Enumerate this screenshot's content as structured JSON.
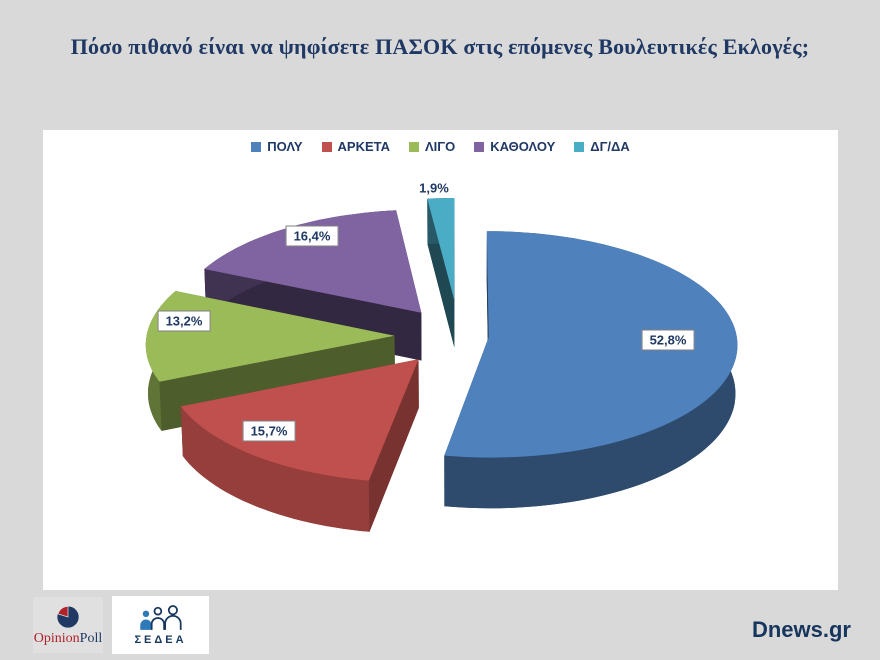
{
  "title": "Πόσο πιθανό είναι να  ψηφίσετε ΠΑΣΟΚ στις επόμενες Βουλευτικές Εκλογές;",
  "chart_data": {
    "type": "pie",
    "style": "3d exploded pie",
    "title": "Πόσο πιθανό είναι να ψηφίσετε ΠΑΣΟΚ στις επόμενες Βουλευτικές Εκλογές;",
    "unit": "%",
    "start_angle_deg": 0,
    "direction": "clockwise",
    "legend_position": "top",
    "slices": [
      {
        "label": "ΠΟΛΥ",
        "value": 52.8,
        "display": "52,8%",
        "color": "#4F81BD"
      },
      {
        "label": "ΑΡΚΕΤΑ",
        "value": 15.7,
        "display": "15,7%",
        "color": "#C0504D"
      },
      {
        "label": "ΛΙΓΟ",
        "value": 13.2,
        "display": "13,2%",
        "color": "#9BBB59"
      },
      {
        "label": "ΚΑΘΟΛΟΥ",
        "value": 16.4,
        "display": "16,4%",
        "color": "#8064A2"
      },
      {
        "label": "ΔΓ/ΔΑ",
        "value": 1.9,
        "display": "1,9%",
        "color": "#4BACC6"
      }
    ]
  },
  "footer": {
    "opinionpoll": {
      "part1": "Opinion",
      "part2": "Poll"
    },
    "sedea": "ΣΕΔΕΑ",
    "source": "Dnews.gr"
  },
  "colors": {
    "page_background": "#D9D9D9",
    "panel_background": "#FFFFFF",
    "title_text": "#1F3864",
    "label_text": "#1F3864",
    "opinionpoll_red": "#B02128",
    "opinionpoll_navy": "#1F3864",
    "sedea_blue": "#2E79B9",
    "sedea_navy": "#16375E"
  }
}
